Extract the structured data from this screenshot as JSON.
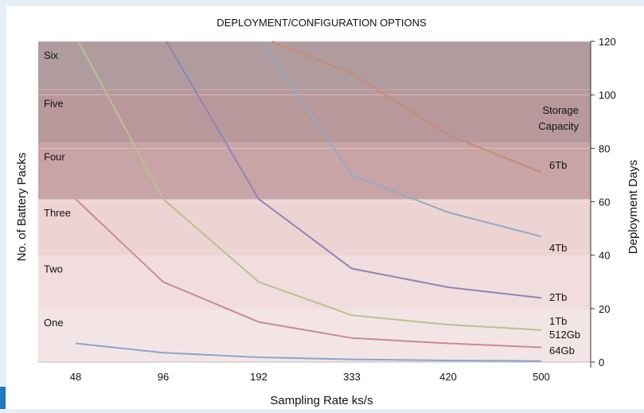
{
  "chart_data": {
    "type": "line",
    "title": "DEPLOYMENT/CONFIGURATION OPTIONS",
    "xlabel": "Sampling Rate ks/s",
    "ylabel_left": "No. of Battery Packs",
    "ylabel_right": "Deployment Days",
    "categories": [
      "48",
      "96",
      "192",
      "333",
      "420",
      "500"
    ],
    "yticks_right": [
      0,
      20,
      40,
      60,
      80,
      100,
      120
    ],
    "ylim": [
      0,
      120
    ],
    "legend_title": "Storage Capacity",
    "bands": [
      {
        "name": "One",
        "from": 0,
        "to": 20,
        "color": "#f3e5e5"
      },
      {
        "name": "Two",
        "from": 20,
        "to": 40,
        "color": "#f1dddd"
      },
      {
        "name": "Three",
        "from": 40,
        "to": 61,
        "color": "#eed3d3"
      },
      {
        "name": "Four",
        "from": 61,
        "to": 82,
        "color": "#c8a4a7"
      },
      {
        "name": "Five",
        "from": 82,
        "to": 102,
        "color": "#b9989c"
      },
      {
        "name": "Six",
        "from": 102,
        "to": 122,
        "color": "#b09c9f"
      }
    ],
    "series": [
      {
        "name": "64Gb",
        "color": "#8aa4cc",
        "values": [
          7,
          3.5,
          1.8,
          1,
          0.6,
          0.4
        ]
      },
      {
        "name": "512Gb",
        "color": "#c98a92",
        "values": [
          61,
          30,
          15,
          9,
          7,
          5.5
        ]
      },
      {
        "name": "1Tb",
        "color": "#b7c28e",
        "values": [
          122,
          61,
          30,
          17.5,
          14,
          12
        ]
      },
      {
        "name": "2Tb",
        "color": "#8c85b7",
        "values": [
          122,
          122,
          61,
          35,
          28,
          24
        ]
      },
      {
        "name": "4Tb",
        "color": "#8facc6",
        "values": [
          122,
          122,
          122,
          70,
          56,
          47
        ]
      },
      {
        "name": "6Tb",
        "color": "#c98a6e",
        "values": [
          122,
          122,
          122,
          108,
          85,
          71
        ]
      }
    ]
  }
}
